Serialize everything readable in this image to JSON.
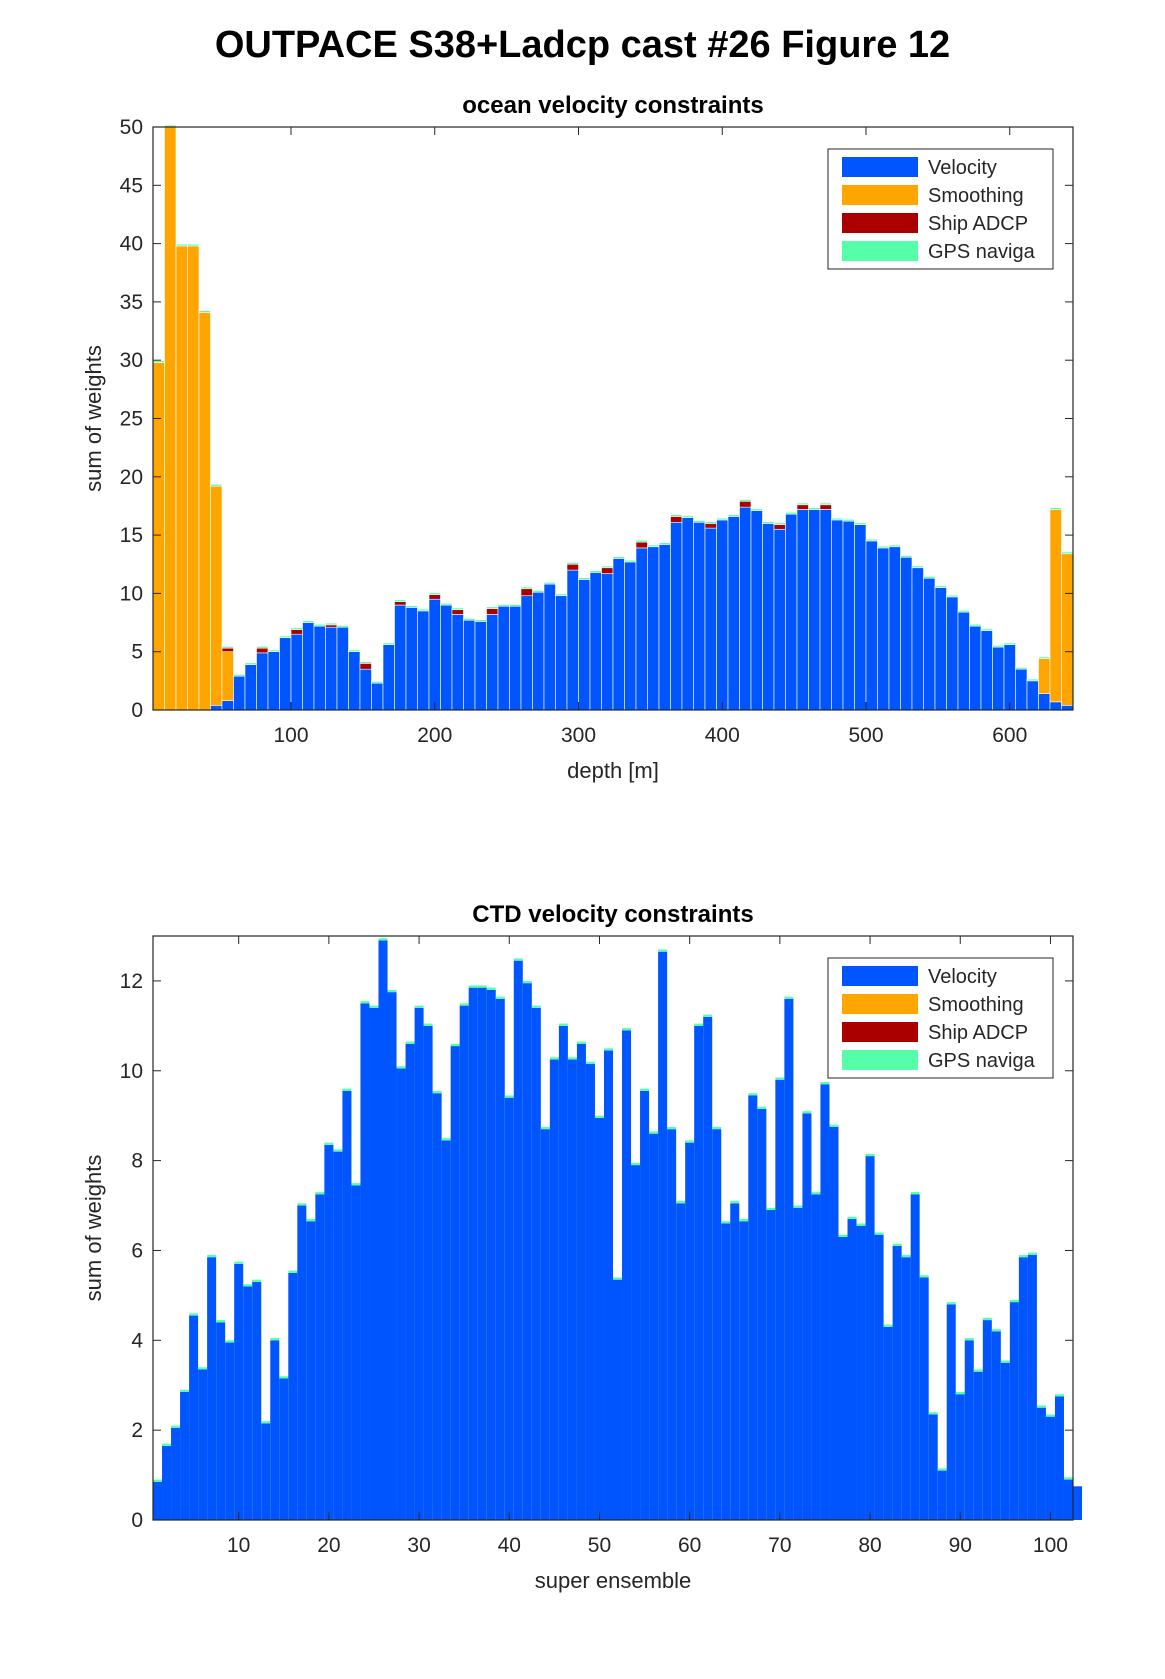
{
  "figure": {
    "suptitle": "OUTPACE S38+Ladcp cast #26  Figure 12"
  },
  "colors": {
    "velocity": "#0055ff",
    "smoothing": "#ffa500",
    "ship_adcp": "#aa0000",
    "gps": "#55ffaa"
  },
  "chart_data": [
    {
      "type": "bar",
      "stacked": true,
      "title": "ocean velocity constraints",
      "xlabel": "depth [m]",
      "ylabel": "sum of weights",
      "xlim": [
        4,
        644
      ],
      "ylim": [
        0,
        50
      ],
      "xticks": [
        100,
        200,
        300,
        400,
        500,
        600
      ],
      "yticks": [
        0,
        5,
        10,
        15,
        20,
        25,
        30,
        35,
        40,
        45,
        50
      ],
      "legend": {
        "location": "top-right",
        "entries": [
          "Velocity",
          "Smoothing",
          "Ship ADCP",
          "GPS naviga"
        ]
      },
      "bin_width": 8,
      "x": [
        8,
        16,
        24,
        32,
        40,
        48,
        56,
        64,
        72,
        80,
        88,
        96,
        104,
        112,
        120,
        128,
        136,
        144,
        152,
        160,
        168,
        176,
        184,
        192,
        200,
        208,
        216,
        224,
        232,
        240,
        248,
        256,
        264,
        272,
        280,
        288,
        296,
        304,
        312,
        320,
        328,
        336,
        344,
        352,
        360,
        368,
        376,
        384,
        392,
        400,
        408,
        416,
        424,
        432,
        440,
        448,
        456,
        464,
        472,
        480,
        488,
        496,
        504,
        512,
        520,
        528,
        536,
        544,
        552,
        560,
        568,
        576,
        584,
        592,
        600,
        608,
        616,
        624,
        632,
        640
      ],
      "series": [
        {
          "name": "Velocity",
          "values": [
            0,
            0,
            0,
            0,
            0,
            0.4,
            0.8,
            2.9,
            3.9,
            4.9,
            5.0,
            6.2,
            6.5,
            7.5,
            7.2,
            7.1,
            7.1,
            5.0,
            3.5,
            2.3,
            5.6,
            9.0,
            8.8,
            8.5,
            9.5,
            9.0,
            8.2,
            7.7,
            7.6,
            8.2,
            8.9,
            8.9,
            9.8,
            10.1,
            10.8,
            9.8,
            12.0,
            11.2,
            11.8,
            11.7,
            13.0,
            12.7,
            13.9,
            14.0,
            14.2,
            16.1,
            16.5,
            16.1,
            15.6,
            16.3,
            16.6,
            17.4,
            17.1,
            16.0,
            15.5,
            16.8,
            17.2,
            17.2,
            17.2,
            16.3,
            16.2,
            15.9,
            14.5,
            13.9,
            14.0,
            13.1,
            12.2,
            11.3,
            10.5,
            9.7,
            8.4,
            7.2,
            6.8,
            5.4,
            5.6,
            3.5,
            2.5,
            1.4,
            0.7,
            0.4
          ]
        },
        {
          "name": "Smoothing",
          "values": [
            29.8,
            50,
            39.8,
            39.8,
            34.1,
            18.8,
            4.2,
            0,
            0,
            0,
            0,
            0,
            0,
            0,
            0,
            0,
            0,
            0,
            0,
            0,
            0,
            0,
            0,
            0,
            0,
            0,
            0,
            0,
            0,
            0,
            0,
            0,
            0,
            0,
            0,
            0,
            0,
            0,
            0,
            0,
            0,
            0,
            0,
            0,
            0,
            0,
            0,
            0,
            0,
            0,
            0,
            0,
            0,
            0,
            0,
            0,
            0,
            0,
            0,
            0,
            0,
            0,
            0,
            0,
            0,
            0,
            0,
            0,
            0,
            0,
            0,
            0,
            0,
            0,
            0,
            0,
            0,
            3.0,
            16.5,
            13.0
          ]
        },
        {
          "name": "Ship ADCP",
          "values": [
            0,
            0,
            0,
            0,
            0,
            0,
            0.3,
            0,
            0,
            0.4,
            0,
            0,
            0.4,
            0,
            0,
            0.2,
            0,
            0,
            0.5,
            0,
            0,
            0.3,
            0,
            0,
            0.4,
            0,
            0.4,
            0,
            0,
            0.5,
            0,
            0,
            0.6,
            0,
            0,
            0,
            0.5,
            0,
            0,
            0.5,
            0,
            0,
            0.5,
            0,
            0,
            0.5,
            0,
            0,
            0.4,
            0,
            0,
            0.5,
            0,
            0,
            0.4,
            0,
            0.4,
            0,
            0.4,
            0,
            0,
            0,
            0,
            0,
            0,
            0,
            0,
            0,
            0,
            0,
            0,
            0,
            0,
            0,
            0,
            0,
            0,
            0,
            0,
            0
          ]
        },
        {
          "name": "GPS naviga",
          "values": [
            0.15,
            0.15,
            0.15,
            0.15,
            0.15,
            0.15,
            0.15,
            0.15,
            0.15,
            0.15,
            0.15,
            0.15,
            0.15,
            0.15,
            0.15,
            0.15,
            0.15,
            0.15,
            0.15,
            0.15,
            0.15,
            0.15,
            0.15,
            0.15,
            0.15,
            0.15,
            0.15,
            0.15,
            0.15,
            0.15,
            0.15,
            0.15,
            0.15,
            0.15,
            0.15,
            0.15,
            0.15,
            0.15,
            0.15,
            0.15,
            0.15,
            0.15,
            0.15,
            0.15,
            0.15,
            0.15,
            0.15,
            0.15,
            0.15,
            0.15,
            0.15,
            0.15,
            0.15,
            0.15,
            0.15,
            0.15,
            0.15,
            0.15,
            0.15,
            0.15,
            0.15,
            0.15,
            0.15,
            0.15,
            0.15,
            0.15,
            0.15,
            0.15,
            0.15,
            0.15,
            0.15,
            0.15,
            0.15,
            0.15,
            0.15,
            0.15,
            0.15,
            0.15,
            0.15,
            0.15
          ]
        }
      ]
    },
    {
      "type": "bar",
      "stacked": true,
      "title": "CTD velocity constraints",
      "xlabel": "super ensemble",
      "ylabel": "sum of weights",
      "xlim": [
        0.5,
        102.5
      ],
      "ylim": [
        0,
        13
      ],
      "xticks": [
        10,
        20,
        30,
        40,
        50,
        60,
        70,
        80,
        90,
        100
      ],
      "yticks": [
        0,
        2,
        4,
        6,
        8,
        10,
        12
      ],
      "legend": {
        "location": "top-right",
        "entries": [
          "Velocity",
          "Smoothing",
          "Ship ADCP",
          "GPS naviga"
        ]
      },
      "bin_width": 1,
      "series": [
        {
          "name": "Velocity",
          "values": [
            0.85,
            1.65,
            2.05,
            2.85,
            4.55,
            3.35,
            5.85,
            4.4,
            3.95,
            5.7,
            5.2,
            5.3,
            2.15,
            4.0,
            3.15,
            5.5,
            7.0,
            6.65,
            7.25,
            8.35,
            8.2,
            9.55,
            7.45,
            11.5,
            11.4,
            12.9,
            11.75,
            10.05,
            10.6,
            11.4,
            11.0,
            9.5,
            8.45,
            10.55,
            11.45,
            11.85,
            11.85,
            11.8,
            11.6,
            9.4,
            12.45,
            11.95,
            11.4,
            8.7,
            10.25,
            11.0,
            10.25,
            10.6,
            10.15,
            8.95,
            10.45,
            5.35,
            10.9,
            7.9,
            9.55,
            8.6,
            12.65,
            8.7,
            7.05,
            8.4,
            11.0,
            11.2,
            8.7,
            6.6,
            7.05,
            6.65,
            9.45,
            9.15,
            6.9,
            9.8,
            11.6,
            6.95,
            9.05,
            7.25,
            9.7,
            8.75,
            6.3,
            6.7,
            6.55,
            8.1,
            6.35,
            4.3,
            6.1,
            5.85,
            7.25,
            5.4,
            2.35,
            1.1,
            4.8,
            2.8,
            4.0,
            3.3,
            4.45,
            4.2,
            3.5,
            4.85,
            5.85,
            5.9,
            2.5,
            2.3,
            2.75,
            0.9,
            0.75
          ]
        },
        {
          "name": "Smoothing",
          "values": [
            0,
            0,
            0,
            0,
            0,
            0,
            0,
            0,
            0,
            0,
            0,
            0,
            0,
            0,
            0,
            0,
            0,
            0,
            0,
            0,
            0,
            0,
            0,
            0,
            0,
            0,
            0,
            0,
            0,
            0,
            0,
            0,
            0,
            0,
            0,
            0,
            0,
            0,
            0,
            0,
            0,
            0,
            0,
            0,
            0,
            0,
            0,
            0,
            0,
            0,
            0,
            0,
            0,
            0,
            0,
            0,
            0,
            0,
            0,
            0,
            0,
            0,
            0,
            0,
            0,
            0,
            0,
            0,
            0,
            0,
            0,
            0,
            0,
            0,
            0,
            0,
            0,
            0,
            0,
            0,
            0,
            0,
            0,
            0,
            0,
            0,
            0,
            0,
            0,
            0,
            0,
            0,
            0,
            0,
            0,
            0,
            0,
            0,
            0,
            0,
            0,
            0
          ]
        },
        {
          "name": "Ship ADCP",
          "values": [
            0,
            0,
            0,
            0,
            0,
            0,
            0,
            0,
            0,
            0,
            0,
            0,
            0,
            0,
            0,
            0,
            0,
            0,
            0,
            0,
            0,
            0,
            0,
            0,
            0,
            0,
            0,
            0,
            0,
            0,
            0,
            0,
            0,
            0,
            0,
            0,
            0,
            0,
            0,
            0,
            0,
            0,
            0,
            0,
            0,
            0,
            0,
            0,
            0,
            0,
            0,
            0,
            0,
            0,
            0,
            0,
            0,
            0,
            0,
            0,
            0,
            0,
            0,
            0,
            0,
            0,
            0,
            0,
            0,
            0,
            0,
            0,
            0,
            0,
            0,
            0,
            0,
            0,
            0,
            0,
            0,
            0,
            0,
            0,
            0,
            0,
            0,
            0,
            0,
            0,
            0,
            0,
            0,
            0,
            0,
            0,
            0,
            0,
            0,
            0,
            0,
            0
          ]
        },
        {
          "name": "GPS naviga",
          "values": [
            0.05,
            0.05,
            0.05,
            0.05,
            0.05,
            0.05,
            0.05,
            0.05,
            0.05,
            0.05,
            0.05,
            0.05,
            0.05,
            0.05,
            0.05,
            0.05,
            0.05,
            0.05,
            0.05,
            0.05,
            0.05,
            0.05,
            0.05,
            0.05,
            0.05,
            0.05,
            0.05,
            0.05,
            0.05,
            0.05,
            0.05,
            0.05,
            0.05,
            0.05,
            0.05,
            0.05,
            0.05,
            0.05,
            0.05,
            0.05,
            0.05,
            0.05,
            0.05,
            0.05,
            0.05,
            0.05,
            0.05,
            0.05,
            0.05,
            0.05,
            0.05,
            0.05,
            0.05,
            0.05,
            0.05,
            0.05,
            0.05,
            0.05,
            0.05,
            0.05,
            0.05,
            0.05,
            0.05,
            0.05,
            0.05,
            0.05,
            0.05,
            0.05,
            0.05,
            0.05,
            0.05,
            0.05,
            0.05,
            0.05,
            0.05,
            0.05,
            0.05,
            0.05,
            0.05,
            0.05,
            0.05,
            0.05,
            0.05,
            0.05,
            0.05,
            0.05,
            0.05,
            0.05,
            0.05,
            0.05,
            0.05,
            0.05,
            0.05,
            0.05,
            0.05,
            0.05,
            0.05,
            0.05,
            0.05,
            0.05,
            0.05,
            0.05
          ]
        }
      ]
    }
  ]
}
